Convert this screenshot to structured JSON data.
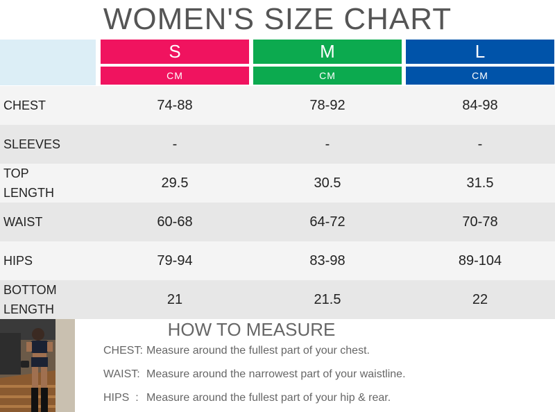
{
  "title": "WOMEN'S SIZE CHART",
  "sizes": [
    {
      "letter": "S",
      "unit": "CM",
      "color": "#f0135f"
    },
    {
      "letter": "M",
      "unit": "CM",
      "color": "#0caa4f"
    },
    {
      "letter": "L",
      "unit": "CM",
      "color": "#0053a9"
    }
  ],
  "rows": [
    {
      "label": "CHEST",
      "s": "74-88",
      "m": "78-92",
      "l": "84-98"
    },
    {
      "label": "SLEEVES",
      "s": "-",
      "m": "-",
      "l": "-"
    },
    {
      "label": "TOP LENGTH",
      "s": "29.5",
      "m": "30.5",
      "l": "31.5"
    },
    {
      "label": "WAIST",
      "s": "60-68",
      "m": "64-72",
      "l": "70-78"
    },
    {
      "label": "HIPS",
      "s": "79-94",
      "m": "83-98",
      "l": "89-104"
    },
    {
      "label": "BOTTOM LENGTH",
      "s": "21",
      "m": "21.5",
      "l": "22"
    }
  ],
  "howto": {
    "title": "HOW TO MEASURE",
    "items": [
      {
        "key": "CHEST:",
        "text": "Measure around the fullest part of your chest."
      },
      {
        "key": "WAIST:",
        "text": "Measure around the narrowest part of your waistline."
      },
      {
        "key": "HIPS  :",
        "text": "Measure around the fullest part of your hip & rear."
      }
    ]
  }
}
